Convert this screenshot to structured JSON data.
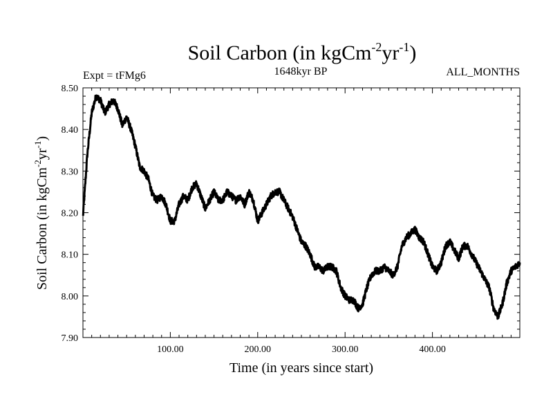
{
  "chart_data": {
    "type": "line",
    "title_main": "Soil Carbon (in kgCm",
    "title_sup1": "-2",
    "title_mid": "yr",
    "title_sup2": "-1",
    "title_end": ")",
    "expt_label": "Expt = tFMg6",
    "period_label": "1648kyr BP",
    "months_label": "ALL_MONTHS",
    "xlabel": "Time (in years since start)",
    "ylabel_main": "Soil Carbon (in kgCm",
    "ylabel_sup1": "-2",
    "ylabel_mid": "yr",
    "ylabel_sup2": "-1",
    "ylabel_end": ")",
    "xlim": [
      0,
      500
    ],
    "ylim": [
      7.9,
      8.5
    ],
    "x_ticks": [
      100,
      200,
      300,
      400
    ],
    "x_tick_labels": [
      "100.00",
      "200.00",
      "300.00",
      "400.00"
    ],
    "y_ticks": [
      7.9,
      8.0,
      8.1,
      8.2,
      8.3,
      8.4,
      8.5
    ],
    "y_tick_labels": [
      "7.90",
      "8.00",
      "8.10",
      "8.20",
      "8.30",
      "8.40",
      "8.50"
    ],
    "series": [
      {
        "x": [
          0,
          5,
          10,
          15,
          20,
          25,
          30,
          35,
          40,
          45,
          50,
          55,
          60,
          65,
          70,
          75,
          80,
          85,
          90,
          95,
          100,
          105,
          110,
          115,
          120,
          125,
          130,
          135,
          140,
          145,
          150,
          155,
          160,
          165,
          170,
          175,
          180,
          185,
          190,
          195,
          200,
          205,
          210,
          215,
          220,
          225,
          230,
          235,
          240,
          245,
          250,
          255,
          260,
          265,
          270,
          275,
          280,
          285,
          290,
          295,
          300,
          305,
          310,
          315,
          320,
          325,
          330,
          335,
          340,
          345,
          350,
          355,
          360,
          365,
          370,
          375,
          380,
          385,
          390,
          395,
          400,
          405,
          410,
          415,
          420,
          425,
          430,
          435,
          440,
          445,
          450,
          455,
          460,
          465,
          470,
          475,
          480,
          485,
          490,
          495,
          500
        ],
        "y": [
          8.19,
          8.34,
          8.44,
          8.48,
          8.47,
          8.44,
          8.46,
          8.47,
          8.45,
          8.41,
          8.43,
          8.4,
          8.36,
          8.31,
          8.3,
          8.28,
          8.24,
          8.23,
          8.24,
          8.22,
          8.18,
          8.18,
          8.22,
          8.24,
          8.23,
          8.26,
          8.27,
          8.24,
          8.21,
          8.23,
          8.25,
          8.23,
          8.23,
          8.25,
          8.24,
          8.23,
          8.24,
          8.22,
          8.25,
          8.23,
          8.18,
          8.2,
          8.22,
          8.24,
          8.25,
          8.25,
          8.23,
          8.21,
          8.19,
          8.16,
          8.13,
          8.12,
          8.1,
          8.07,
          8.07,
          8.06,
          8.07,
          8.07,
          8.06,
          8.02,
          8.0,
          7.99,
          7.99,
          7.97,
          7.98,
          8.02,
          8.05,
          8.06,
          8.06,
          8.07,
          8.06,
          8.05,
          8.07,
          8.12,
          8.14,
          8.15,
          8.16,
          8.14,
          8.13,
          8.1,
          8.07,
          8.06,
          8.08,
          8.12,
          8.13,
          8.11,
          8.09,
          8.12,
          8.12,
          8.1,
          8.08,
          8.06,
          8.04,
          8.02,
          7.97,
          7.95,
          7.98,
          8.03,
          8.06,
          8.07,
          8.08
        ]
      }
    ]
  }
}
